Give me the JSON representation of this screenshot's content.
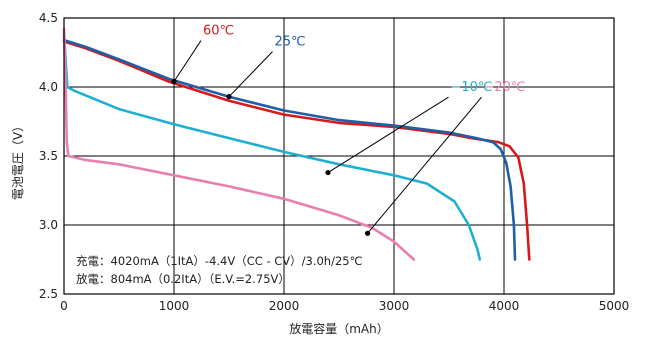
{
  "chart_data": {
    "type": "line",
    "xlabel": "放電容量（mAh）",
    "ylabel": "電池電圧（V）",
    "xlim": [
      0,
      5000
    ],
    "ylim": [
      2.5,
      4.5
    ],
    "x_ticks": [
      "0",
      "1000",
      "2000",
      "3000",
      "4000",
      "5000"
    ],
    "y_ticks": [
      "2.5",
      "3.0",
      "3.5",
      "4.0",
      "4.5"
    ],
    "grid": true,
    "series": [
      {
        "name": "60℃",
        "color": "#d7191c",
        "points": [
          [
            0,
            4.33
          ],
          [
            200,
            4.28
          ],
          [
            500,
            4.19
          ],
          [
            950,
            4.04
          ],
          [
            1500,
            3.9
          ],
          [
            2000,
            3.8
          ],
          [
            2500,
            3.74
          ],
          [
            3000,
            3.71
          ],
          [
            3500,
            3.66
          ],
          [
            3700,
            3.63
          ],
          [
            3950,
            3.6
          ],
          [
            4050,
            3.57
          ],
          [
            4130,
            3.49
          ],
          [
            4180,
            3.3
          ],
          [
            4210,
            3.0
          ],
          [
            4230,
            2.75
          ]
        ]
      },
      {
        "name": "25℃",
        "color": "#1f5fa8",
        "points": [
          [
            0,
            4.34
          ],
          [
            200,
            4.29
          ],
          [
            500,
            4.2
          ],
          [
            950,
            4.06
          ],
          [
            1500,
            3.93
          ],
          [
            2000,
            3.83
          ],
          [
            2500,
            3.76
          ],
          [
            3000,
            3.72
          ],
          [
            3500,
            3.67
          ],
          [
            3750,
            3.63
          ],
          [
            3900,
            3.6
          ],
          [
            3970,
            3.55
          ],
          [
            4020,
            3.45
          ],
          [
            4060,
            3.28
          ],
          [
            4090,
            3.0
          ],
          [
            4100,
            2.75
          ]
        ]
      },
      {
        "name": "−10℃",
        "color": "#1fb0cf",
        "points": [
          [
            0,
            4.38
          ],
          [
            30,
            4.0
          ],
          [
            100,
            3.97
          ],
          [
            500,
            3.84
          ],
          [
            1000,
            3.73
          ],
          [
            1500,
            3.63
          ],
          [
            2000,
            3.53
          ],
          [
            2500,
            3.44
          ],
          [
            3000,
            3.36
          ],
          [
            3300,
            3.3
          ],
          [
            3550,
            3.17
          ],
          [
            3680,
            3.0
          ],
          [
            3760,
            2.82
          ],
          [
            3780,
            2.75
          ]
        ]
      },
      {
        "name": "−20℃",
        "color": "#e97fb0",
        "points": [
          [
            0,
            4.42
          ],
          [
            15,
            4.0
          ],
          [
            25,
            3.6
          ],
          [
            40,
            3.5
          ],
          [
            200,
            3.47
          ],
          [
            500,
            3.44
          ],
          [
            1000,
            3.36
          ],
          [
            1500,
            3.28
          ],
          [
            2000,
            3.19
          ],
          [
            2500,
            3.07
          ],
          [
            2800,
            2.98
          ],
          [
            3000,
            2.88
          ],
          [
            3180,
            2.75
          ]
        ]
      }
    ],
    "annotations": [
      {
        "series": "60℃",
        "label": "60℃",
        "point": [
          1000,
          4.04
        ],
        "label_at": [
          1300,
          4.38
        ]
      },
      {
        "series": "25℃",
        "label": "25℃",
        "point": [
          1500,
          3.93
        ],
        "label_at": [
          1950,
          4.3
        ]
      },
      {
        "series": "−10℃",
        "label": "−10℃",
        "point": [
          2400,
          3.38
        ],
        "label_at": [
          3550,
          3.97
        ]
      },
      {
        "series": "−20℃",
        "label": "−20℃",
        "point": [
          2760,
          2.94
        ],
        "label_at": [
          3850,
          3.97
        ]
      }
    ],
    "conditions": [
      "充電：4020mA（1ItA）-4.4V（CC - CV）/3.0h/25℃",
      "放電：804mA（0.2ItA）（E.V.=2.75V）"
    ]
  }
}
